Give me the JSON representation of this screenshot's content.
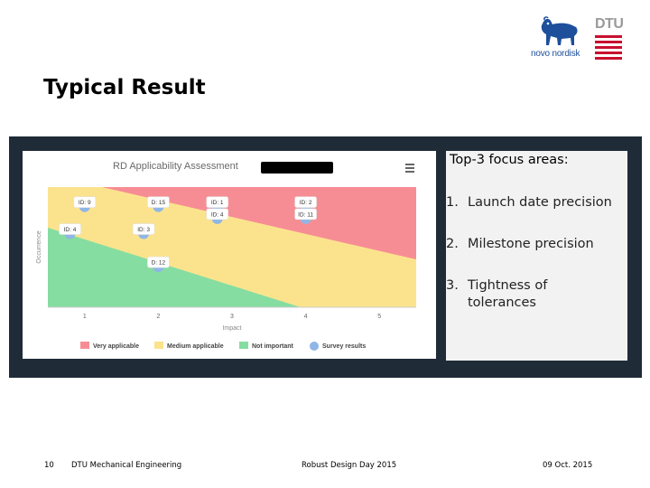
{
  "slide": {
    "title": "Typical Result"
  },
  "logos": {
    "novo_text": "novo nordisk",
    "dtu_text": "DTU"
  },
  "chart_data": {
    "type": "scatter",
    "title": "RD Applicability Assessment",
    "xlabel": "Impact",
    "ylabel": "Occurrence",
    "xlim": [
      0.5,
      5.5
    ],
    "ylim": [
      0.5,
      4.5
    ],
    "x_ticks": [
      "1",
      "2",
      "3",
      "4",
      "5"
    ],
    "zones": [
      {
        "name": "Very applicable",
        "color": "#f78d94"
      },
      {
        "name": "Medium applicable",
        "color": "#fbe38e"
      },
      {
        "name": "Not important",
        "color": "#85dda1"
      }
    ],
    "points": [
      {
        "label": "ID: 9",
        "x": 1.0,
        "y": 4.0
      },
      {
        "label": "D: 15",
        "x": 2.0,
        "y": 4.0
      },
      {
        "label": "ID: 1",
        "x": 2.8,
        "y": 4.0
      },
      {
        "label": "ID: 2",
        "x": 4.0,
        "y": 4.0
      },
      {
        "label": "ID: 4",
        "x": 2.8,
        "y": 3.6
      },
      {
        "label": "ID: 11",
        "x": 4.0,
        "y": 3.6
      },
      {
        "label": "ID: 4",
        "x": 0.8,
        "y": 3.1
      },
      {
        "label": "ID: 3",
        "x": 1.8,
        "y": 3.1
      },
      {
        "label": "D: 12",
        "x": 2.0,
        "y": 2.0
      }
    ],
    "legend": [
      {
        "label": "Very applicable",
        "color": "#f78d94",
        "shape": "rect"
      },
      {
        "label": "Medium applicable",
        "color": "#fbe38e",
        "shape": "rect"
      },
      {
        "label": "Not important",
        "color": "#85dda1",
        "shape": "rect"
      },
      {
        "label": "Survey results",
        "color": "#8fb6e6",
        "shape": "circle"
      }
    ],
    "point_color": "#8fb6e6"
  },
  "focus": {
    "title": "Top-3 focus areas:",
    "items": [
      {
        "num": "1.",
        "text": "Launch date precision"
      },
      {
        "num": "2.",
        "text": "Milestone precision"
      },
      {
        "num": "3.",
        "text": "Tightness of tolerances"
      }
    ]
  },
  "footer": {
    "page": "10",
    "dept": "DTU Mechanical Engineering",
    "event": "Robust Design Day 2015",
    "date": "09 Oct. 2015"
  }
}
